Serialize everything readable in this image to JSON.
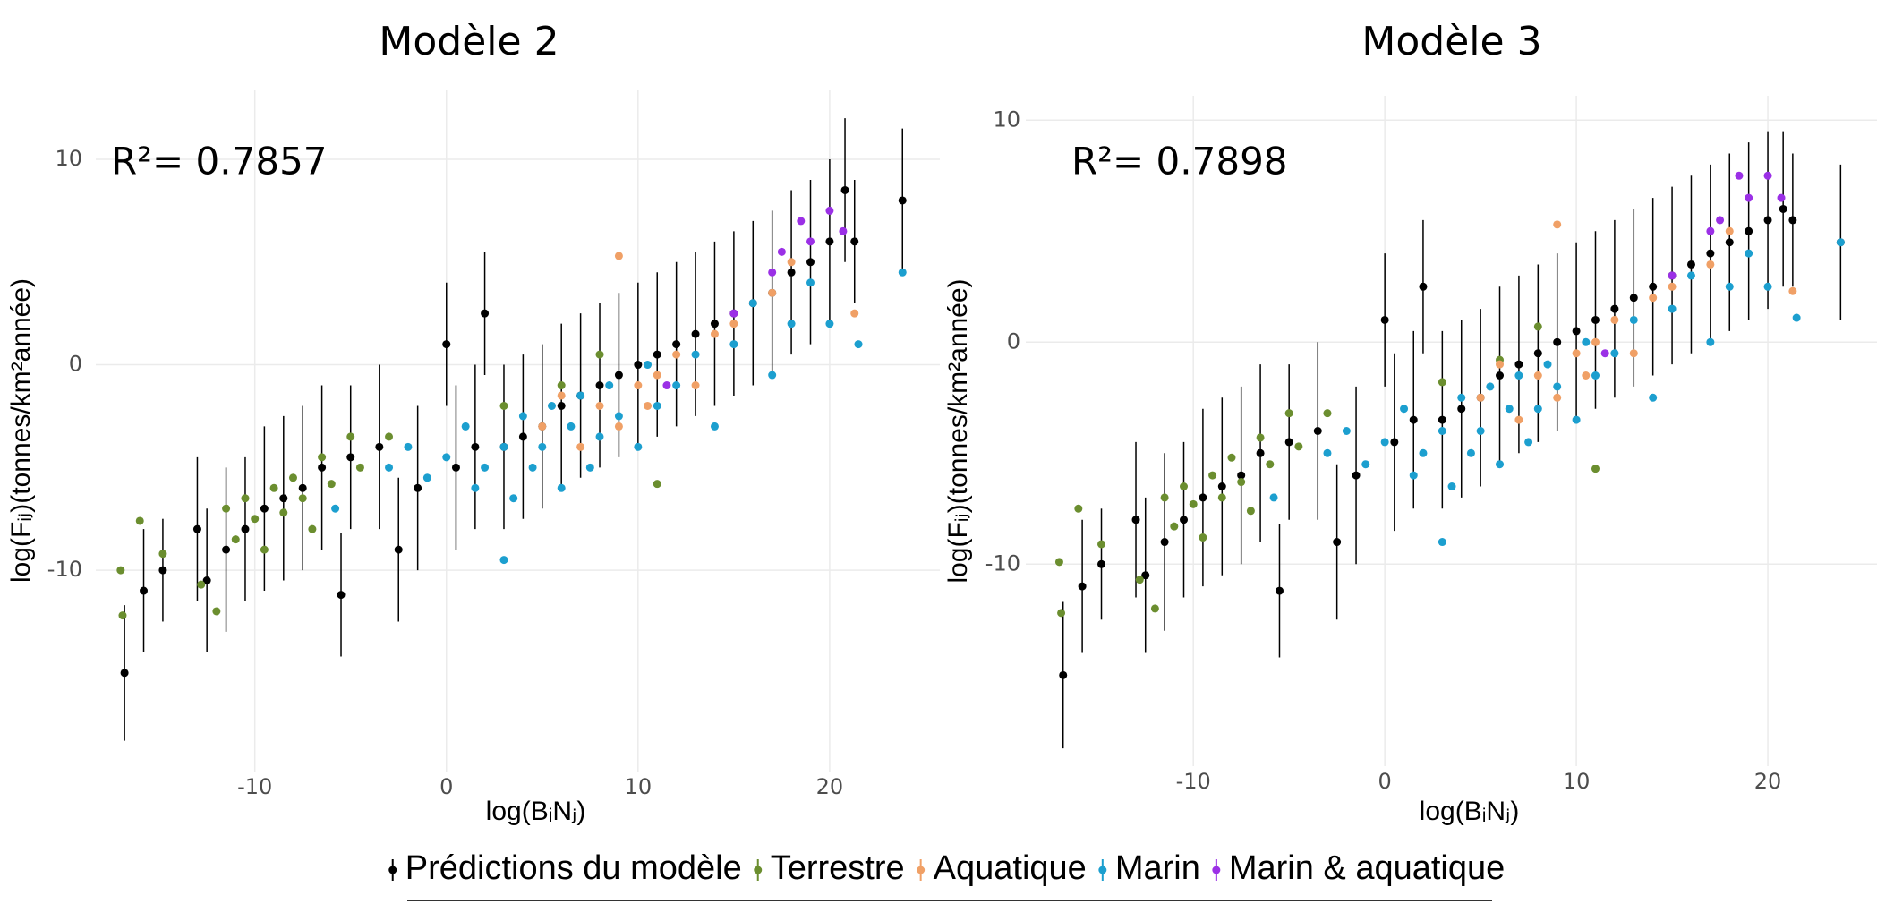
{
  "chart_data": [
    {
      "type": "scatter",
      "title": "Modèle 2",
      "annotation": "R²= 0.7857",
      "xlabel": "log(BᵢNⱼ)",
      "ylabel": "log(Fᵢⱼ)(tonnes/km²année)",
      "xlim": [
        -18.3,
        25.75
      ],
      "ylim": [
        -19.8,
        13.4
      ],
      "xticks": [
        -10,
        0,
        10,
        20
      ],
      "yticks": [
        -10,
        0,
        10
      ],
      "grid": true,
      "series": [
        {
          "name": "Prédictions du modèle",
          "color": "#000000",
          "x": [
            -16.8,
            -15.8,
            -14.8,
            -13,
            -12.5,
            -11.5,
            -10.5,
            -9.5,
            -8.5,
            -7.5,
            -6.5,
            -5.5,
            -5,
            -3.5,
            -2.5,
            -1.5,
            0,
            0.5,
            1.5,
            2,
            3,
            4,
            5,
            6,
            7,
            8,
            9,
            10,
            11,
            12,
            13,
            14,
            15,
            16,
            17,
            18,
            19,
            20,
            20.8,
            21.3,
            23.8
          ],
          "values": [
            -15,
            -11,
            -10,
            -8,
            -10.5,
            -9,
            -8,
            -7,
            -6.5,
            -6,
            -5,
            -11.2,
            -4.5,
            -4,
            -9,
            -6,
            1,
            -5,
            -4,
            2.5,
            -4,
            -3.5,
            -3,
            -2,
            -1.5,
            -1,
            -0.5,
            0,
            0.5,
            1,
            1.5,
            2,
            2.5,
            3,
            3.5,
            4.5,
            5,
            6,
            8.5,
            6,
            8
          ],
          "errors": [
            3.3,
            3,
            2.5,
            3.5,
            3.5,
            4,
            3.5,
            4,
            4,
            4,
            4,
            3,
            3.5,
            4,
            3.5,
            4,
            3,
            4,
            4,
            3,
            4,
            4,
            4,
            4,
            4,
            4,
            4,
            4,
            4,
            4,
            4,
            4,
            4,
            4,
            4,
            4,
            4,
            4,
            3.5,
            3,
            3.5
          ]
        },
        {
          "name": "Terrestre",
          "color": "#6b8e2f",
          "x": [
            -17,
            -16.9,
            -16,
            -14.8,
            -12.8,
            -12,
            -11.5,
            -11,
            -10.5,
            -10,
            -9.5,
            -9,
            -8.5,
            -8,
            -7.5,
            -7,
            -6.5,
            -6,
            -5,
            -4.5,
            -3,
            3,
            6,
            11,
            8
          ],
          "values": [
            -10,
            -12.2,
            -7.6,
            -9.2,
            -10.7,
            -12,
            -7,
            -8.5,
            -6.5,
            -7.5,
            -9,
            -6,
            -7.2,
            -5.5,
            -6.5,
            -8,
            -4.5,
            -5.8,
            -3.5,
            -5,
            -3.5,
            -2,
            -1,
            -5.8,
            0.5
          ]
        },
        {
          "name": "Aquatique",
          "color": "#f0a066",
          "x": [
            5,
            6,
            7,
            8,
            9,
            10,
            10.5,
            11,
            12,
            13,
            14,
            15,
            17,
            18,
            9,
            21.3
          ],
          "values": [
            -3,
            -1.5,
            -4,
            -2,
            -3,
            -1,
            -2,
            -0.5,
            0.5,
            -1,
            1.5,
            2,
            3.5,
            5,
            5.3,
            2.5
          ]
        },
        {
          "name": "Marin",
          "color": "#1c9fcf",
          "x": [
            -5.8,
            -3,
            -2,
            -1,
            0,
            1,
            1.5,
            2,
            3,
            3.5,
            4,
            4.5,
            5,
            5.5,
            6,
            6.5,
            7,
            7.5,
            8,
            8.5,
            9,
            10,
            10.5,
            11,
            12,
            13,
            14,
            15,
            16,
            17,
            18,
            19,
            20,
            21.5,
            23.8,
            3
          ],
          "values": [
            -7,
            -5,
            -4,
            -5.5,
            -4.5,
            -3,
            -6,
            -5,
            -4,
            -6.5,
            -2.5,
            -5,
            -4,
            -2,
            -6,
            -3,
            -1.5,
            -5,
            -3.5,
            -1,
            -2.5,
            -4,
            0,
            -2,
            -1,
            0.5,
            -3,
            1,
            3,
            -0.5,
            2,
            4,
            2,
            1,
            4.5,
            -9.5
          ]
        },
        {
          "name": "Marin & aquatique",
          "color": "#9b30e6",
          "x": [
            11.5,
            15,
            17,
            18.5,
            19,
            20,
            20.7,
            17.5
          ],
          "values": [
            -1,
            2.5,
            4.5,
            7,
            6,
            7.5,
            6.5,
            5.5
          ]
        }
      ]
    },
    {
      "type": "scatter",
      "title": "Modèle 3",
      "annotation": "R²= 0.7898",
      "xlabel": "log(BᵢNⱼ)",
      "ylabel": "log(Fᵢⱼ)(tonnes/km²année)",
      "xlim": [
        -18.75,
        25.7
      ],
      "ylim": [
        -19.1,
        11.1
      ],
      "xticks": [
        -10,
        0,
        10,
        20
      ],
      "yticks": [
        -10,
        0,
        10
      ],
      "grid": true,
      "series": [
        {
          "color": "#000000",
          "x": [
            -16.8,
            -15.8,
            -14.8,
            -13,
            -12.5,
            -11.5,
            -10.5,
            -9.5,
            -8.5,
            -7.5,
            -6.5,
            -5.5,
            -5,
            -3.5,
            -2.5,
            -1.5,
            0,
            0.5,
            1.5,
            2,
            3,
            4,
            5,
            6,
            7,
            8,
            9,
            10,
            11,
            12,
            13,
            14,
            15,
            16,
            17,
            18,
            19,
            20,
            20.8,
            21.3,
            23.8
          ],
          "values": [
            -15,
            -11,
            -10,
            -8,
            -10.5,
            -9,
            -8,
            -7,
            -6.5,
            -6,
            -5,
            -11.2,
            -4.5,
            -4,
            -9,
            -6,
            1,
            -4.5,
            -3.5,
            2.5,
            -3.5,
            -3,
            -2.5,
            -1.5,
            -1,
            -0.5,
            0,
            0.5,
            1,
            1.5,
            2,
            2.5,
            3,
            3.5,
            4,
            4.5,
            5,
            5.5,
            6,
            5.5,
            4.5
          ],
          "errors": [
            3.3,
            3,
            2.5,
            3.5,
            3.5,
            4,
            3.5,
            4,
            4,
            4,
            4,
            3,
            3.5,
            4,
            3.5,
            4,
            3,
            4,
            4,
            3,
            4,
            4,
            4,
            4,
            4,
            4,
            4,
            4,
            4,
            4,
            4,
            4,
            4,
            4,
            4,
            4,
            4,
            4,
            3.5,
            3,
            3.5
          ]
        },
        {
          "color": "#6b8e2f",
          "x": [
            -17,
            -16.9,
            -16,
            -14.8,
            -12.8,
            -12,
            -11.5,
            -11,
            -10.5,
            -10,
            -9.5,
            -9,
            -8.5,
            -8,
            -7.5,
            -7,
            -6.5,
            -6,
            -5,
            -4.5,
            -3,
            3,
            6,
            11,
            8
          ],
          "values": [
            -9.9,
            -12.2,
            -7.5,
            -9.1,
            -10.7,
            -12,
            -7,
            -8.3,
            -6.5,
            -7.3,
            -8.8,
            -6,
            -7,
            -5.2,
            -6.3,
            -7.6,
            -4.3,
            -5.5,
            -3.2,
            -4.7,
            -3.2,
            -1.8,
            -0.8,
            -5.7,
            0.7
          ]
        },
        {
          "color": "#f0a066",
          "x": [
            5,
            6,
            7,
            8,
            9,
            10,
            10.5,
            11,
            12,
            13,
            14,
            15,
            17,
            18,
            9,
            21.3
          ],
          "values": [
            -2.5,
            -1,
            -3.5,
            -1.5,
            -2.5,
            -0.5,
            -1.5,
            0,
            1,
            -0.5,
            2,
            2.5,
            3.5,
            5,
            5.3,
            2.3
          ]
        },
        {
          "color": "#1c9fcf",
          "x": [
            -5.8,
            -3,
            -2,
            -1,
            0,
            1,
            1.5,
            2,
            3,
            3.5,
            4,
            4.5,
            5,
            5.5,
            6,
            6.5,
            7,
            7.5,
            8,
            8.5,
            9,
            10,
            10.5,
            11,
            12,
            13,
            14,
            15,
            16,
            17,
            18,
            19,
            20,
            21.5,
            23.8,
            3
          ],
          "values": [
            -7,
            -5,
            -4,
            -5.5,
            -4.5,
            -3,
            -6,
            -5,
            -4,
            -6.5,
            -2.5,
            -5,
            -4,
            -2,
            -5.5,
            -3,
            -1.5,
            -4.5,
            -3,
            -1,
            -2,
            -3.5,
            0,
            -1.5,
            -0.5,
            1,
            -2.5,
            1.5,
            3,
            0,
            2.5,
            4,
            2.5,
            1.1,
            4.5,
            -9
          ]
        },
        {
          "color": "#9b30e6",
          "x": [
            11.5,
            15,
            17,
            18.5,
            19,
            20,
            20.7,
            17.5
          ],
          "values": [
            -0.5,
            3,
            5,
            7.5,
            6.5,
            7.5,
            6.5,
            5.5
          ]
        }
      ]
    }
  ]
}
